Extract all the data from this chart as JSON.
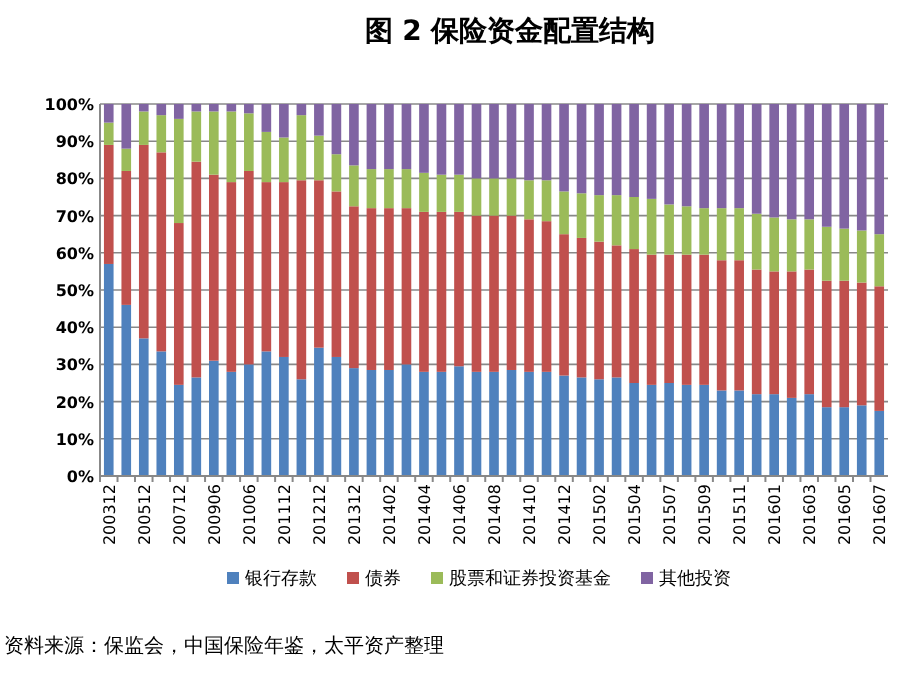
{
  "chart_data": {
    "type": "bar",
    "stacked": true,
    "title": "图 2 保险资金配置结构",
    "categories": [
      "200312",
      null,
      "200512",
      null,
      "200712",
      null,
      "200906",
      null,
      "201006",
      null,
      "201112",
      null,
      "201212",
      null,
      "201312",
      null,
      "201402",
      null,
      "201404",
      null,
      "201406",
      null,
      "201408",
      null,
      "201410",
      null,
      "201412",
      null,
      "201502",
      null,
      "201504",
      null,
      "201507",
      null,
      "201509",
      null,
      "201511",
      null,
      "201601",
      null,
      "201603",
      null,
      "201605",
      null,
      "201607"
    ],
    "series": [
      {
        "name": "银行存款",
        "color": "#4f81bd",
        "values": [
          57,
          46,
          37,
          33.5,
          24.5,
          26.5,
          31,
          28,
          30,
          33.5,
          32,
          26,
          34.5,
          32,
          29,
          28.5,
          28.5,
          30,
          28,
          28,
          29.5,
          28,
          28,
          28.5,
          28,
          28,
          27,
          26.5,
          26,
          26.5,
          25,
          24.5,
          25,
          24.5,
          24.5,
          23,
          23,
          22,
          22,
          21,
          22,
          18.5,
          18.5,
          19,
          17.5
        ]
      },
      {
        "name": "债券",
        "color": "#c0504d",
        "values": [
          32,
          36,
          52,
          53.5,
          43.5,
          58,
          50,
          51,
          52,
          45.5,
          47,
          53.5,
          45,
          44.5,
          43.5,
          43.5,
          43.5,
          42,
          43,
          43,
          41.5,
          42,
          42,
          41.5,
          41,
          40.5,
          38,
          37.5,
          37,
          35.5,
          36,
          35,
          34.5,
          35,
          35,
          35,
          35,
          33.5,
          33,
          34,
          33.5,
          34,
          34,
          33,
          33.5
        ]
      },
      {
        "name": "股票和证券投资基金",
        "color": "#9bbb59",
        "values": [
          6,
          6,
          9,
          10,
          28,
          13.5,
          17,
          19,
          15.5,
          13.5,
          12,
          17.5,
          12,
          10,
          11,
          10.5,
          10.5,
          10.5,
          10.5,
          10,
          10,
          10,
          10,
          10,
          10.5,
          11,
          11.5,
          12,
          12.5,
          13.5,
          14,
          15,
          13.5,
          13,
          12.5,
          14,
          14,
          15,
          14.5,
          14,
          13.5,
          14.5,
          14,
          14,
          14
        ]
      },
      {
        "name": "其他投资",
        "color": "#8064a2",
        "values": [
          5,
          12,
          2,
          3,
          4,
          2,
          2,
          2,
          2.5,
          7.5,
          9,
          3,
          8.5,
          13.5,
          16.5,
          17.5,
          17.5,
          17.5,
          18.5,
          19,
          19,
          20,
          20,
          20,
          20.5,
          20.5,
          23.5,
          24,
          24.5,
          24.5,
          25,
          25.5,
          27,
          27.5,
          28,
          28,
          28,
          29.5,
          30.5,
          31,
          31,
          33,
          33.5,
          34,
          35
        ]
      }
    ],
    "ylim": [
      0,
      100
    ],
    "yticks": [
      {
        "value": 0,
        "label": "0%"
      },
      {
        "value": 10,
        "label": "10%"
      },
      {
        "value": 20,
        "label": "20%"
      },
      {
        "value": 30,
        "label": "30%"
      },
      {
        "value": 40,
        "label": "40%"
      },
      {
        "value": 50,
        "label": "50%"
      },
      {
        "value": 60,
        "label": "60%"
      },
      {
        "value": 70,
        "label": "70%"
      },
      {
        "value": 80,
        "label": "80%"
      },
      {
        "value": 90,
        "label": "90%"
      },
      {
        "value": 100,
        "label": "100%"
      }
    ],
    "grid": "y",
    "legend": "bottom",
    "annotations": [
      "资料来源：保监会，中国保险年鉴，太平资产整理"
    ]
  }
}
